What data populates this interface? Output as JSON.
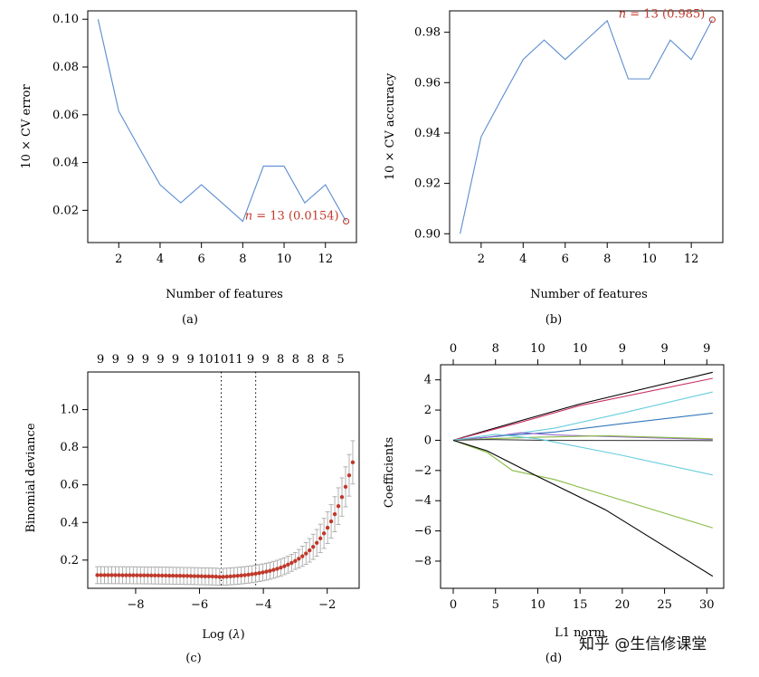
{
  "chart_data": [
    {
      "id": "a",
      "type": "line",
      "panel_label": "(a)",
      "xlabel": "Number of features",
      "ylabel": "10 × CV error",
      "xlim": [
        0.5,
        13.5
      ],
      "ylim": [
        0.0065,
        0.1035
      ],
      "xticks": [
        2,
        4,
        6,
        8,
        10,
        12
      ],
      "yticks": [
        0.02,
        0.04,
        0.06,
        0.08,
        0.1
      ],
      "ytick_labels": [
        "0.02",
        "0.04",
        "0.06",
        "0.08",
        "0.10"
      ],
      "color": "#5b8ccf",
      "x": [
        1,
        2,
        3,
        4,
        5,
        6,
        7,
        8,
        9,
        10,
        11,
        12,
        13
      ],
      "y": [
        0.1,
        0.0615,
        0.046,
        0.0307,
        0.0231,
        0.0307,
        0.0231,
        0.0154,
        0.0385,
        0.0385,
        0.0231,
        0.0307,
        0.0154
      ],
      "highlight": {
        "x": 13,
        "y": 0.0154,
        "label_prefix": "n",
        "label_rest": " = 13 (0.0154)"
      }
    },
    {
      "id": "b",
      "type": "line",
      "panel_label": "(b)",
      "xlabel": "Number of features",
      "ylabel": "10 × CV accuracy",
      "xlim": [
        0.5,
        13.5
      ],
      "ylim": [
        0.8965,
        0.9885
      ],
      "xticks": [
        2,
        4,
        6,
        8,
        10,
        12
      ],
      "yticks": [
        0.9,
        0.92,
        0.94,
        0.96,
        0.98
      ],
      "ytick_labels": [
        "0.90",
        "0.92",
        "0.94",
        "0.96",
        "0.98"
      ],
      "color": "#5b8ccf",
      "x": [
        1,
        2,
        3,
        4,
        5,
        6,
        7,
        8,
        9,
        10,
        11,
        12,
        13
      ],
      "y": [
        0.9,
        0.9385,
        0.954,
        0.9692,
        0.9769,
        0.9692,
        0.9769,
        0.9846,
        0.9615,
        0.9615,
        0.9769,
        0.9692,
        0.985
      ],
      "highlight": {
        "x": 13,
        "y": 0.985,
        "label_prefix": "n",
        "label_rest": " = 13 (0.985)"
      }
    },
    {
      "id": "c",
      "type": "scatter",
      "panel_label": "(c)",
      "xlabel_prefix": "Log (",
      "xlabel_var": "λ",
      "xlabel_suffix": ")",
      "ylabel": "Binomial deviance",
      "xlim": [
        -9.5,
        -1.0
      ],
      "ylim": [
        0.05,
        1.2
      ],
      "xticks": [
        -8,
        -6,
        -4,
        -2
      ],
      "xtick_labels": [
        "−8",
        "−6",
        "−4",
        "−2"
      ],
      "yticks": [
        0.2,
        0.4,
        0.6,
        0.8,
        1.0
      ],
      "ytick_labels": [
        "0.2",
        "0.4",
        "0.6",
        "0.8",
        "1.0"
      ],
      "point_color": "#c0392b",
      "error_color": "#a9a9a9",
      "vlines": [
        -5.32,
        -4.24
      ],
      "top_axis": {
        "positions": [
          -9.1,
          -8.63,
          -8.16,
          -7.69,
          -7.22,
          -6.75,
          -6.28,
          -5.81,
          -5.34,
          -4.87,
          -4.4,
          -3.93,
          -3.46,
          -2.99,
          -2.52,
          -2.05,
          -1.58
        ],
        "labels": [
          "9",
          "9",
          "9",
          "9",
          "9",
          "9",
          "9",
          "10",
          "10",
          "11",
          "9",
          "9",
          "8",
          "8",
          "8",
          "8",
          "5"
        ]
      },
      "curve": {
        "x_start": -9.2,
        "x_end": -1.2,
        "n": 72,
        "min_x": -5.4,
        "min_y": 0.11,
        "base": 0.12,
        "err_base": 0.045,
        "err_tail": 0.07
      }
    },
    {
      "id": "d",
      "type": "line",
      "panel_label": "(d)",
      "xlabel": "L1 norm",
      "ylabel": "Coefficients",
      "xlim": [
        -1.5,
        32
      ],
      "ylim": [
        -9.8,
        5.0
      ],
      "xticks": [
        0,
        5,
        10,
        15,
        20,
        25,
        30
      ],
      "yticks": [
        -8,
        -6,
        -4,
        -2,
        0,
        2,
        4
      ],
      "ytick_labels": [
        "−8",
        "−6",
        "−4",
        "−2",
        "0",
        "2",
        "4"
      ],
      "top_axis": {
        "positions": [
          0,
          5,
          10,
          15,
          20,
          25,
          30
        ],
        "labels": [
          "0",
          "8",
          "10",
          "10",
          "9",
          "9",
          "9"
        ]
      },
      "series": [
        {
          "color": "#000000",
          "x": [
            0,
            3,
            8,
            15,
            30.7
          ],
          "y": [
            0,
            0.5,
            1.3,
            2.4,
            4.5
          ]
        },
        {
          "color": "#cc3366",
          "x": [
            0,
            3,
            8,
            15,
            30.7
          ],
          "y": [
            0,
            0.45,
            1.2,
            2.3,
            4.1
          ]
        },
        {
          "color": "#66ccdd",
          "x": [
            0,
            5,
            12,
            20,
            30.7
          ],
          "y": [
            0,
            0.25,
            0.8,
            1.8,
            3.2
          ]
        },
        {
          "color": "#3377bb",
          "x": [
            0,
            6,
            12,
            20,
            30.7
          ],
          "y": [
            0,
            0.3,
            0.55,
            1.1,
            1.8
          ]
        },
        {
          "color": "#9966cc",
          "x": [
            0,
            4,
            8,
            12,
            30.7
          ],
          "y": [
            0,
            0.2,
            0.5,
            0.35,
            0.05
          ]
        },
        {
          "color": "#88bb44",
          "x": [
            0,
            4,
            10,
            18,
            30.7
          ],
          "y": [
            0,
            0.1,
            0.2,
            0.3,
            0.1
          ]
        },
        {
          "color": "#444444",
          "x": [
            0,
            4,
            10,
            30.7
          ],
          "y": [
            0,
            0.05,
            0.0,
            -0.02
          ]
        },
        {
          "color": "#66ccdd",
          "x": [
            0,
            5,
            10,
            20,
            30.7
          ],
          "y": [
            0,
            0.4,
            0.1,
            -1.0,
            -2.3
          ]
        },
        {
          "color": "#88bb44",
          "x": [
            0,
            4,
            7,
            12,
            30.7
          ],
          "y": [
            0,
            -0.8,
            -2.0,
            -2.6,
            -5.8
          ]
        },
        {
          "color": "#000000",
          "x": [
            0,
            4,
            10,
            18,
            30.7
          ],
          "y": [
            0,
            -0.7,
            -2.4,
            -4.6,
            -9.0
          ]
        }
      ]
    }
  ],
  "watermark": "知乎 @生信修课堂"
}
